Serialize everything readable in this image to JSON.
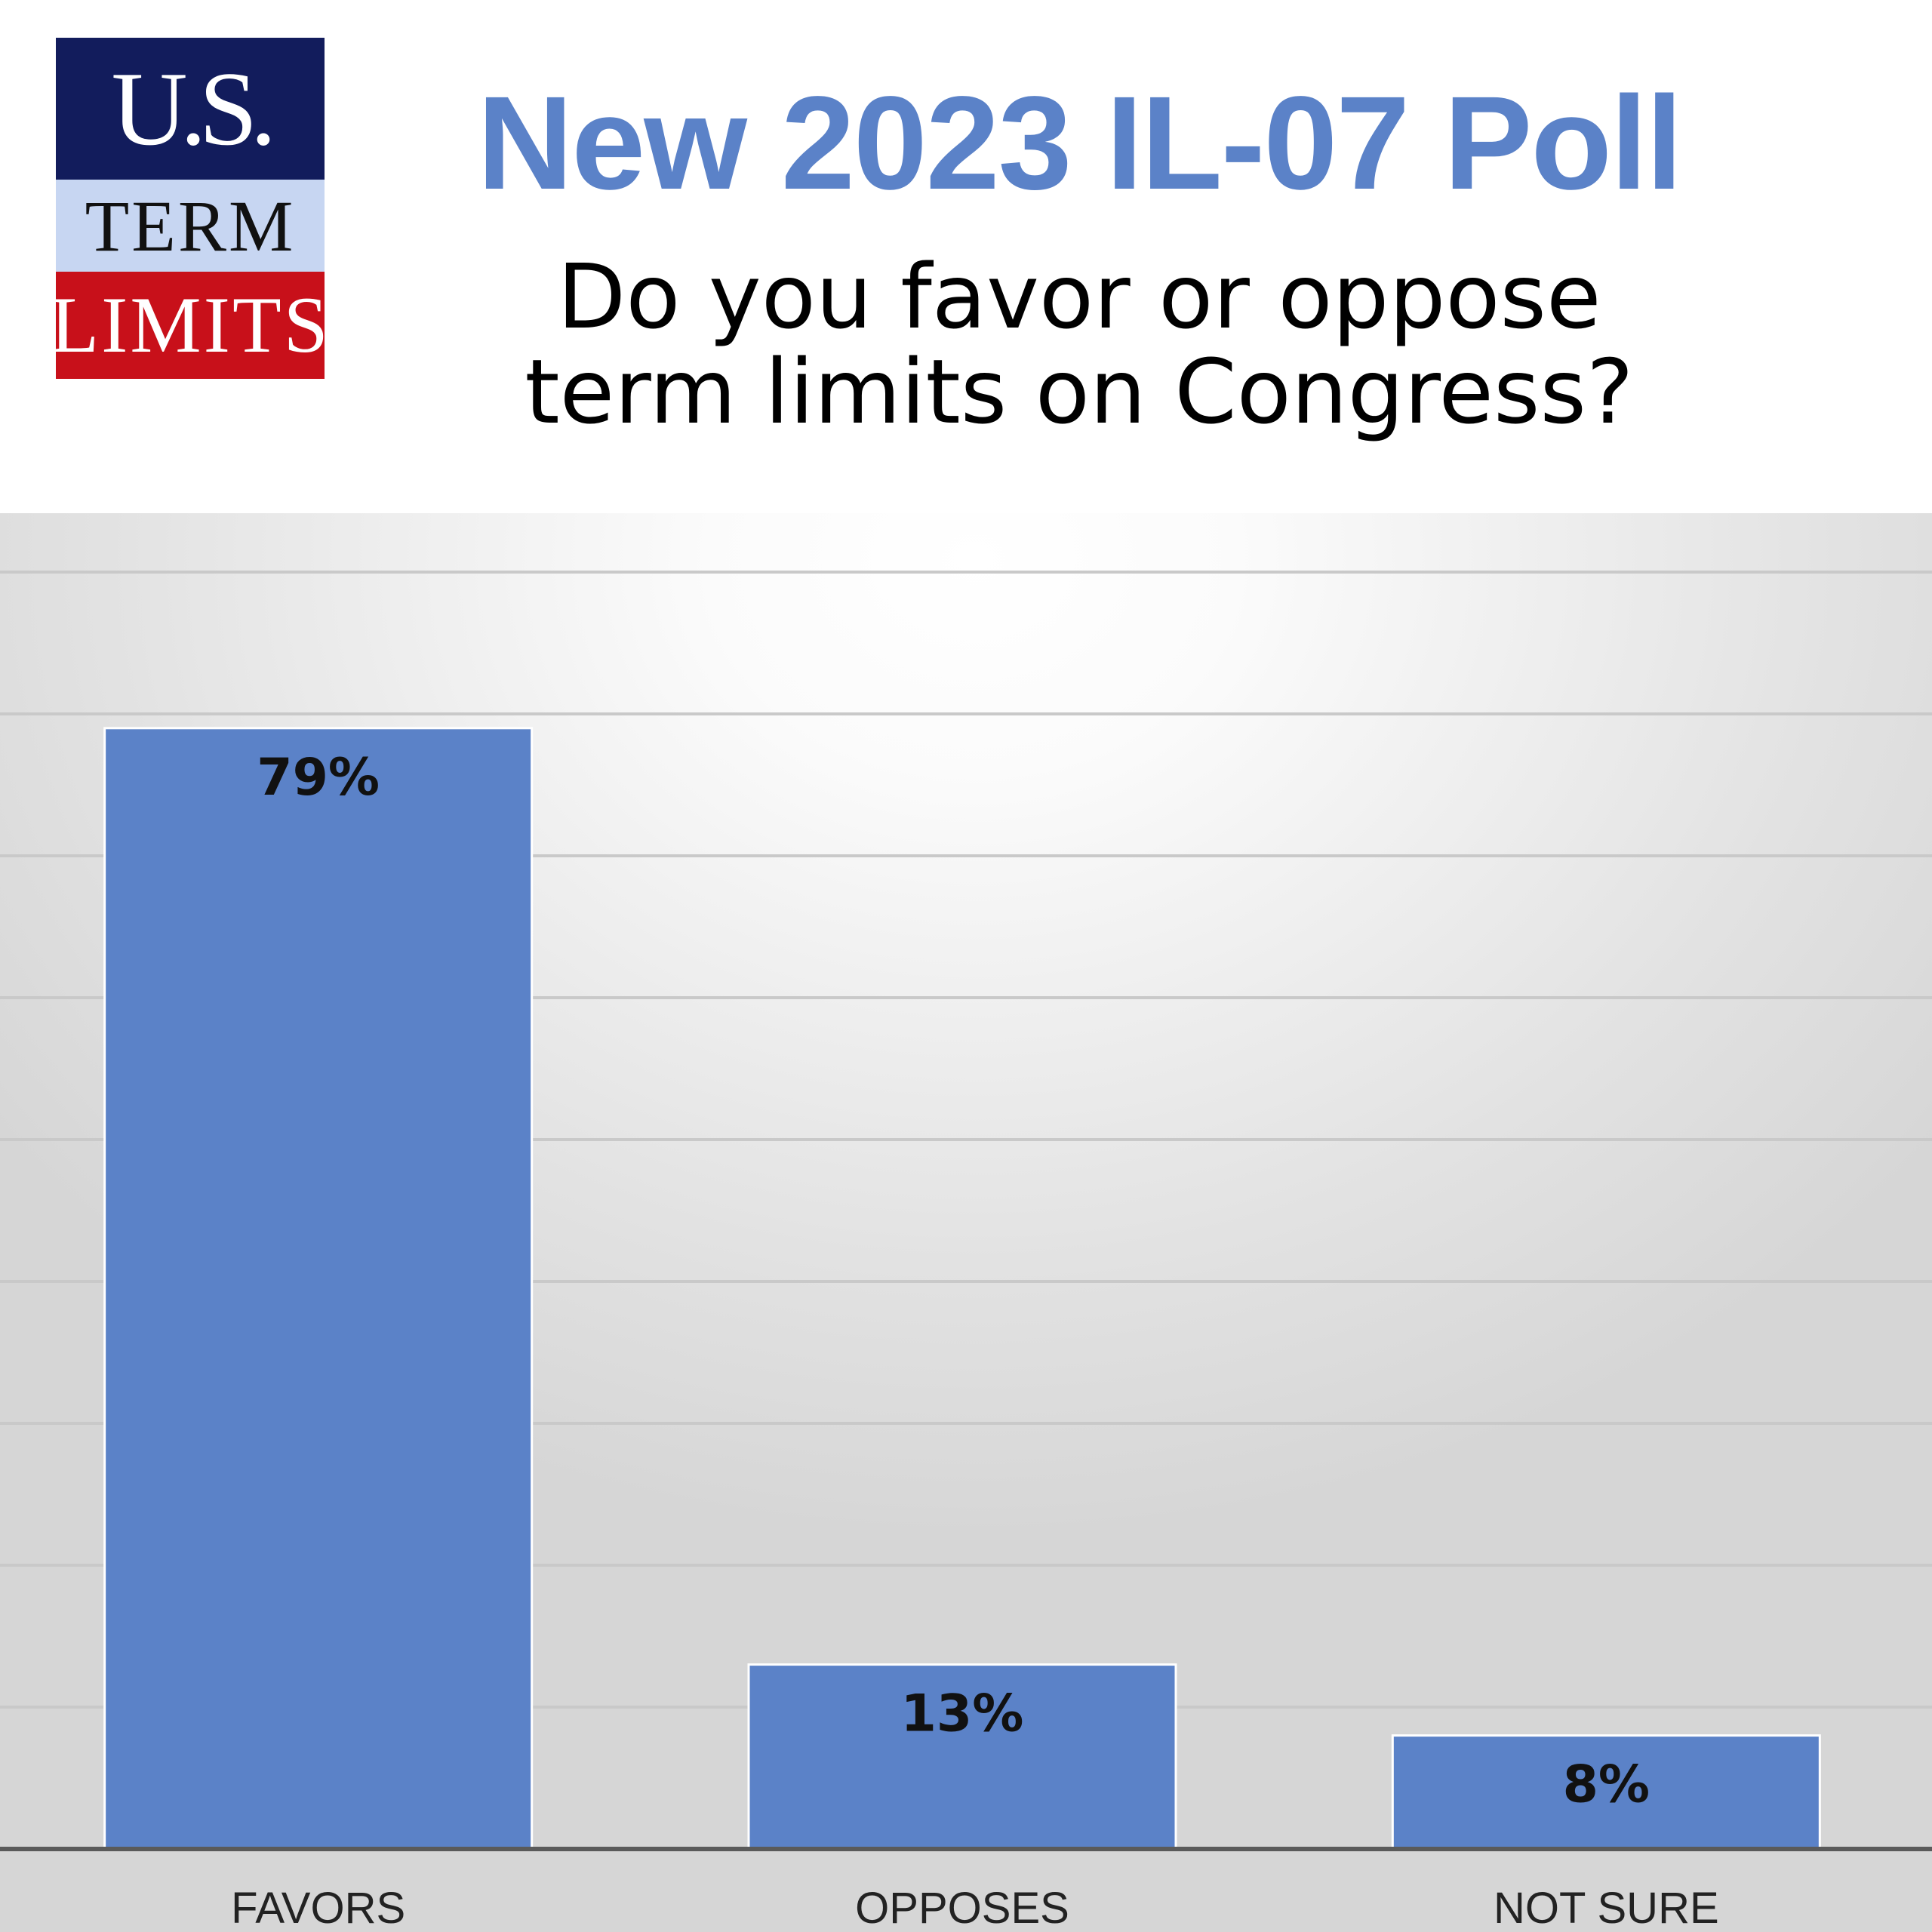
{
  "logo": {
    "line1": "U.S.",
    "line2": "TERM",
    "line3": "LIMITS"
  },
  "title": "New 2023 IL-07 Poll",
  "subtitle_line1": "Do you favor or oppose",
  "subtitle_line2": "term limits on Congress?",
  "colors": {
    "title": "#5b82c8",
    "bar": "#5b82c8",
    "bar_edge": "#ffffff",
    "gridline": "#c9c9c9",
    "axis": "#5a5a5a",
    "label": "#222222",
    "logo_navy": "#121c5c",
    "logo_light": "#c7d6f2",
    "logo_red": "#c8101a"
  },
  "chart_data": {
    "type": "bar",
    "categories": [
      "FAVORS",
      "OPPOSES",
      "NOT SURE"
    ],
    "values": [
      79,
      13,
      8
    ],
    "data_labels": [
      "79%",
      "13%",
      "8%"
    ],
    "title": "",
    "xlabel": "",
    "ylabel": "",
    "ylim": [
      0,
      100
    ],
    "grid": true,
    "legend": "none"
  }
}
